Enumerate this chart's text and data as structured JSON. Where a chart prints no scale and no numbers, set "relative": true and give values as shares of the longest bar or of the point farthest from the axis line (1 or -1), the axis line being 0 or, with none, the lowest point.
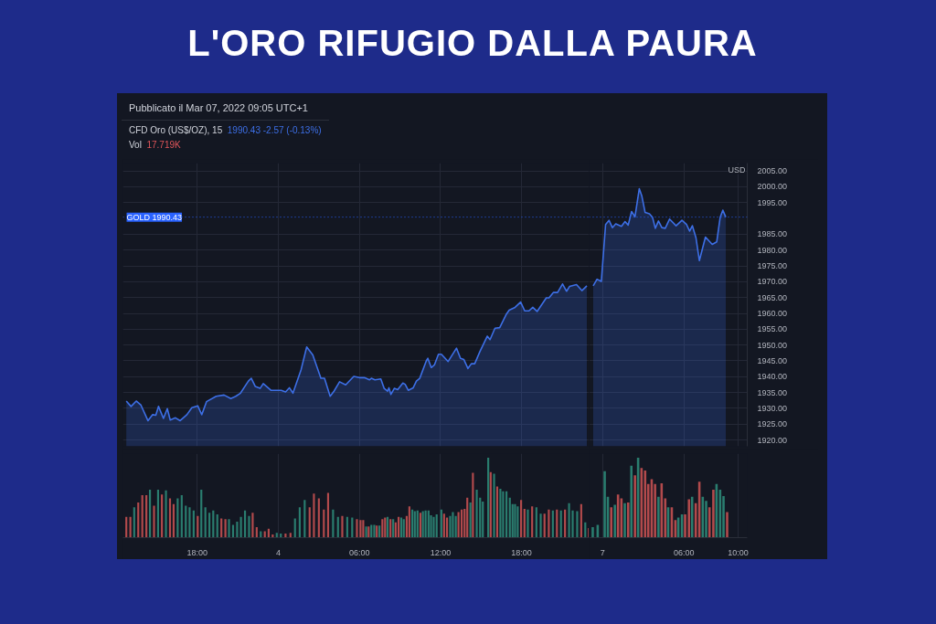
{
  "chart_data": [
    {
      "type": "area",
      "title": "L'ORO RIFUGIO DALLA PAURA",
      "annotations": [
        "Pubblicato il Mar 07, 2022 09:05 UTC+1",
        "CFD Oro (US$/OZ), 15",
        "1990.43  -2.57 (-0.13%)"
      ],
      "x": [
        "2022-03-03T12:45",
        "2022-03-03T13:06",
        "2022-03-03T13:29",
        "2022-03-03T13:50",
        "2022-03-03T14:21",
        "2022-03-03T14:42",
        "2022-03-03T14:56",
        "2022-03-03T15:08",
        "2022-03-03T15:30",
        "2022-03-03T15:47",
        "2022-03-03T16:00",
        "2022-03-03T16:23",
        "2022-03-03T16:44",
        "2022-03-03T17:14",
        "2022-03-03T17:36",
        "2022-03-03T18:02",
        "2022-03-03T18:20",
        "2022-03-03T18:41",
        "2022-03-03T19:24",
        "2022-03-03T19:59",
        "2022-03-03T20:29",
        "2022-03-03T20:51",
        "2022-03-03T21:12",
        "2022-03-03T21:47",
        "2022-03-03T22:00",
        "2022-03-03T22:18",
        "2022-03-03T22:39",
        "2022-03-03T22:53",
        "2022-03-03T23:27",
        "2022-03-04T00:13",
        "2022-03-04T00:32",
        "2022-03-04T00:49",
        "2022-03-04T01:05",
        "2022-03-04T01:41",
        "2022-03-04T02:06",
        "2022-03-04T02:33",
        "2022-03-04T03:09",
        "2022-03-04T03:25",
        "2022-03-04T03:50",
        "2022-03-04T04:07",
        "2022-03-04T04:32",
        "2022-03-04T04:59",
        "2022-03-04T05:35",
        "2022-03-04T06:00",
        "2022-03-04T06:22",
        "2022-03-04T06:45",
        "2022-03-04T06:53",
        "2022-03-04T07:09",
        "2022-03-04T07:35",
        "2022-03-04T07:50",
        "2022-03-04T08:05",
        "2022-03-04T08:11",
        "2022-03-04T08:20",
        "2022-03-04T08:35",
        "2022-03-04T08:50",
        "2022-03-04T09:13",
        "2022-03-04T09:23",
        "2022-03-04T09:37",
        "2022-03-04T09:59",
        "2022-03-04T10:13",
        "2022-03-04T10:28",
        "2022-03-04T10:37",
        "2022-03-04T10:57",
        "2022-03-04T11:04",
        "2022-03-04T11:19",
        "2022-03-04T11:33",
        "2022-03-04T11:51",
        "2022-03-04T12:04",
        "2022-03-04T12:34",
        "2022-03-04T13:11",
        "2022-03-04T13:29",
        "2022-03-04T13:44",
        "2022-03-04T14:02",
        "2022-03-04T14:17",
        "2022-03-04T14:32",
        "2022-03-04T14:55",
        "2022-03-04T15:28",
        "2022-03-04T15:40",
        "2022-03-04T16:02",
        "2022-03-04T16:23",
        "2022-03-04T16:53",
        "2022-03-04T17:05",
        "2022-03-04T17:31",
        "2022-03-04T17:56",
        "2022-03-04T18:14",
        "2022-03-04T18:33",
        "2022-03-04T18:50",
        "2022-03-04T19:09",
        "2022-03-04T19:50",
        "2022-03-04T20:02",
        "2022-03-04T20:21",
        "2022-03-04T20:40",
        "2022-03-04T21:02",
        "2022-03-04T21:20",
        "2022-03-04T21:33",
        "2022-03-04T22:04",
        "2022-03-04T22:28",
        "2022-03-04T22:50"
      ],
      "series": [
        {
          "color": "#3d6fe6",
          "values": [
            1932.3,
            1930.6,
            1932.3,
            1931.0,
            1926.1,
            1928.0,
            1927.8,
            1930.6,
            1926.8,
            1929.9,
            1926.3,
            1927.0,
            1926.1,
            1928.0,
            1930.2,
            1930.8,
            1928.0,
            1932.1,
            1933.8,
            1934.2,
            1933.1,
            1933.8,
            1934.8,
            1938.6,
            1939.5,
            1936.9,
            1936.3,
            1937.8,
            1935.7,
            1935.7,
            1935.2,
            1936.5,
            1934.8,
            1942.2,
            1949.4,
            1946.9,
            1939.5,
            1939.5,
            1933.8,
            1935.4,
            1938.4,
            1937.4,
            1940.1,
            1939.7,
            1939.7,
            1939.0,
            1939.5,
            1939.0,
            1939.3,
            1936.3,
            1935.4,
            1936.5,
            1934.4,
            1936.3,
            1935.9,
            1938.0,
            1937.6,
            1935.7,
            1936.5,
            1938.6,
            1939.5,
            1941.2,
            1945.0,
            1945.8,
            1942.9,
            1943.7,
            1947.1,
            1947.1,
            1944.8,
            1949.0,
            1945.8,
            1945.4,
            1942.6,
            1944.1,
            1944.1,
            1947.9,
            1952.8,
            1951.7,
            1955.3,
            1955.5,
            1959.8,
            1961.0,
            1961.9,
            1963.6,
            1960.8,
            1960.8,
            1961.9,
            1960.6,
            1964.9,
            1964.9,
            1966.6,
            1966.6,
            1969.3,
            1967.0,
            1968.5,
            1969.1,
            1967.2,
            1968.7
          ]
        }
      ],
      "xlim": [
        "2022-03-03T12:30",
        "2022-03-04T23:00"
      ],
      "ylim": [
        1918,
        2007.5
      ],
      "xticks": [
        {
          "value": "2022-03-03T18:00",
          "label": null
        },
        {
          "value": "2022-03-04T00:00",
          "label": null
        },
        {
          "value": "2022-03-04T06:00",
          "label": null
        },
        {
          "value": "2022-03-04T12:00",
          "label": null
        },
        {
          "value": "2022-03-04T18:00",
          "label": null
        }
      ],
      "yticks": [
        {
          "value": 1920,
          "label": null
        },
        {
          "value": 1925,
          "label": null
        },
        {
          "value": 1930,
          "label": null
        },
        {
          "value": 1935,
          "label": null
        },
        {
          "value": 1940,
          "label": null
        },
        {
          "value": 1945,
          "label": null
        },
        {
          "value": 1950,
          "label": null
        },
        {
          "value": 1955,
          "label": null
        },
        {
          "value": 1960,
          "label": null
        },
        {
          "value": 1965,
          "label": null
        },
        {
          "value": 1970,
          "label": null
        },
        {
          "value": 1975,
          "label": null
        },
        {
          "value": 1980,
          "label": null
        },
        {
          "value": 1985,
          "label": null
        },
        {
          "value": 1995,
          "label": null
        },
        {
          "value": 2000,
          "label": null
        },
        {
          "value": 2005,
          "label": null
        }
      ],
      "ref_lines": [
        {
          "axis": "y",
          "value": 1990.43,
          "label": "GOLD 1990.43",
          "color": "#2962ff",
          "line_style": "dotted"
        }
      ],
      "grid": true,
      "tick_labels": false
    },
    {
      "type": "area",
      "ylabel": "USD",
      "x": [
        "2022-03-06T23:18",
        "2022-03-06T23:35",
        "2022-03-06T23:54",
        "2022-03-07T00:13",
        "2022-03-07T00:28",
        "2022-03-07T00:43",
        "2022-03-07T00:58",
        "2022-03-07T01:23",
        "2022-03-07T01:39",
        "2022-03-07T01:53",
        "2022-03-07T02:08",
        "2022-03-07T02:23",
        "2022-03-07T02:42",
        "2022-03-07T02:53",
        "2022-03-07T03:08",
        "2022-03-07T03:27",
        "2022-03-07T03:41",
        "2022-03-07T03:53",
        "2022-03-07T04:07",
        "2022-03-07T04:22",
        "2022-03-07T04:37",
        "2022-03-07T04:56",
        "2022-03-07T05:25",
        "2022-03-07T05:51",
        "2022-03-07T06:11",
        "2022-03-07T06:25",
        "2022-03-07T06:37",
        "2022-03-07T06:53",
        "2022-03-07T07:08",
        "2022-03-07T07:35",
        "2022-03-07T08:05",
        "2022-03-07T08:25",
        "2022-03-07T08:40",
        "2022-03-07T08:52",
        "2022-03-07T09:05"
      ],
      "series": [
        {
          "color": "#3d6fe6",
          "values": [
            1968.7,
            1970.8,
            1970.1,
            1988.1,
            1989.4,
            1987.1,
            1988.3,
            1987.5,
            1989.0,
            1987.9,
            1992.2,
            1990.5,
            1999.4,
            1997.2,
            1991.9,
            1991.5,
            1990.3,
            1986.9,
            1989.2,
            1987.1,
            1986.9,
            1989.8,
            1987.7,
            1989.4,
            1988.1,
            1986.0,
            1987.7,
            1983.9,
            1976.7,
            1984.1,
            1981.8,
            1982.6,
            1990.3,
            1992.6,
            1990.43
          ]
        }
      ],
      "xlim": [
        "2022-03-06T23:00",
        "2022-03-07T10:40"
      ],
      "ylim": [
        1918,
        2007.5
      ],
      "xticks": [
        {
          "value": "2022-03-07T00:00",
          "label": null
        },
        {
          "value": "2022-03-07T06:00",
          "label": null
        },
        {
          "value": "2022-03-07T10:00",
          "label": null
        }
      ],
      "yticks": [
        {
          "value": 1920,
          "label": "1920.00"
        },
        {
          "value": 1925,
          "label": "1925.00"
        },
        {
          "value": 1930,
          "label": "1930.00"
        },
        {
          "value": 1935,
          "label": "1935.00"
        },
        {
          "value": 1940,
          "label": "1940.00"
        },
        {
          "value": 1945,
          "label": "1945.00"
        },
        {
          "value": 1950,
          "label": "1950.00"
        },
        {
          "value": 1955,
          "label": "1955.00"
        },
        {
          "value": 1960,
          "label": "1960.00"
        },
        {
          "value": 1965,
          "label": "1965.00"
        },
        {
          "value": 1970,
          "label": "1970.00"
        },
        {
          "value": 1975,
          "label": "1975.00"
        },
        {
          "value": 1980,
          "label": "1980.00"
        },
        {
          "value": 1985,
          "label": "1985.00"
        },
        {
          "value": 1995,
          "label": "1995.00"
        },
        {
          "value": 2000,
          "label": "2000.00"
        },
        {
          "value": 2005,
          "label": "2005.00"
        }
      ],
      "ref_lines": [
        {
          "axis": "y",
          "value": 1990.43,
          "color": "#2962ff",
          "line_style": "dotted"
        }
      ],
      "grid": true,
      "tick_labels": "y"
    },
    {
      "type": "bar",
      "relative": true,
      "annotations": [
        "Vol",
        "17.719K"
      ],
      "x": [
        "2022-03-03T12:45",
        "2022-03-03T13:03",
        "2022-03-03T13:20",
        "2022-03-03T13:38",
        "2022-03-03T13:56",
        "2022-03-03T14:14",
        "2022-03-03T14:30",
        "2022-03-03T14:48",
        "2022-03-03T15:06",
        "2022-03-03T15:23",
        "2022-03-03T15:41",
        "2022-03-03T15:59",
        "2022-03-03T16:15",
        "2022-03-03T16:33",
        "2022-03-03T16:51",
        "2022-03-03T17:09",
        "2022-03-03T17:26",
        "2022-03-03T17:44",
        "2022-03-03T18:02",
        "2022-03-03T18:18",
        "2022-03-03T18:36",
        "2022-03-03T18:54",
        "2022-03-03T19:11",
        "2022-03-03T19:29",
        "2022-03-03T19:47",
        "2022-03-03T20:05",
        "2022-03-03T20:21",
        "2022-03-03T20:39",
        "2022-03-03T20:57",
        "2022-03-03T21:14",
        "2022-03-03T21:32",
        "2022-03-03T21:50",
        "2022-03-03T22:06",
        "2022-03-03T22:24",
        "2022-03-03T22:42",
        "2022-03-03T23:00",
        "2022-03-03T23:17",
        "2022-03-03T23:35",
        "2022-03-03T23:53",
        "2022-03-04T00:11",
        "2022-03-04T00:32",
        "2022-03-04T00:54",
        "2022-03-04T01:14",
        "2022-03-04T01:35",
        "2022-03-04T01:57",
        "2022-03-04T02:19",
        "2022-03-04T02:38",
        "2022-03-04T03:00",
        "2022-03-04T03:22",
        "2022-03-04T03:41",
        "2022-03-04T04:03",
        "2022-03-04T04:25",
        "2022-03-04T04:44",
        "2022-03-04T05:06",
        "2022-03-04T05:28",
        "2022-03-04T05:49",
        "2022-03-04T06:05",
        "2022-03-04T06:17",
        "2022-03-04T06:30",
        "2022-03-04T06:41",
        "2022-03-04T06:53",
        "2022-03-04T07:06",
        "2022-03-04T07:17",
        "2022-03-04T07:29",
        "2022-03-04T07:42",
        "2022-03-04T07:54",
        "2022-03-04T08:05",
        "2022-03-04T08:18",
        "2022-03-04T08:30",
        "2022-03-04T08:41",
        "2022-03-04T08:54",
        "2022-03-04T09:06",
        "2022-03-04T09:17",
        "2022-03-04T09:30",
        "2022-03-04T09:42",
        "2022-03-04T09:55",
        "2022-03-04T10:06",
        "2022-03-04T10:18",
        "2022-03-04T10:31",
        "2022-03-04T10:42",
        "2022-03-04T10:54",
        "2022-03-04T11:07",
        "2022-03-04T11:18",
        "2022-03-04T11:30",
        "2022-03-04T11:43",
        "2022-03-04T12:04",
        "2022-03-04T12:16",
        "2022-03-04T12:29",
        "2022-03-04T12:43",
        "2022-03-04T12:55",
        "2022-03-04T13:08",
        "2022-03-04T13:20",
        "2022-03-04T13:34",
        "2022-03-04T13:47",
        "2022-03-04T13:59",
        "2022-03-04T14:13",
        "2022-03-04T14:24",
        "2022-03-04T14:41",
        "2022-03-04T14:56",
        "2022-03-04T15:08",
        "2022-03-04T15:32",
        "2022-03-04T15:43",
        "2022-03-04T15:58",
        "2022-03-04T16:12",
        "2022-03-04T16:26",
        "2022-03-04T16:38",
        "2022-03-04T16:53",
        "2022-03-04T17:08",
        "2022-03-04T17:20",
        "2022-03-04T17:31",
        "2022-03-04T17:43",
        "2022-03-04T17:58",
        "2022-03-04T18:13",
        "2022-03-04T18:28",
        "2022-03-04T18:47",
        "2022-03-04T19:06",
        "2022-03-04T19:25",
        "2022-03-04T19:42",
        "2022-03-04T20:01",
        "2022-03-04T20:19",
        "2022-03-04T20:37",
        "2022-03-04T20:55",
        "2022-03-04T21:13",
        "2022-03-04T21:31",
        "2022-03-04T21:47",
        "2022-03-04T22:07",
        "2022-03-04T22:25",
        "2022-03-04T22:43",
        "2022-03-04T22:59"
      ],
      "values": [
        0.26,
        0.26,
        0.38,
        0.44,
        0.53,
        0.53,
        0.6,
        0.4,
        0.6,
        0.54,
        0.59,
        0.49,
        0.42,
        0.49,
        0.53,
        0.4,
        0.38,
        0.34,
        0.27,
        0.6,
        0.38,
        0.31,
        0.34,
        0.29,
        0.24,
        0.23,
        0.23,
        0.16,
        0.2,
        0.26,
        0.34,
        0.27,
        0.31,
        0.13,
        0.08,
        0.08,
        0.11,
        0.04,
        0.06,
        0.05,
        0.05,
        0.06,
        0.24,
        0.38,
        0.47,
        0.38,
        0.55,
        0.49,
        0.35,
        0.56,
        0.35,
        0.26,
        0.27,
        0.26,
        0.25,
        0.23,
        0.22,
        0.22,
        0.14,
        0.14,
        0.16,
        0.16,
        0.15,
        0.15,
        0.23,
        0.25,
        0.26,
        0.23,
        0.23,
        0.19,
        0.26,
        0.25,
        0.23,
        0.27,
        0.39,
        0.35,
        0.33,
        0.34,
        0.31,
        0.33,
        0.34,
        0.34,
        0.28,
        0.26,
        0.29,
        0.35,
        0.3,
        0.25,
        0.27,
        0.32,
        0.27,
        0.32,
        0.35,
        0.36,
        0.5,
        0.44,
        0.81,
        0.6,
        0.5,
        0.45,
        1.0,
        0.82,
        0.8,
        0.64,
        0.61,
        0.58,
        0.58,
        0.5,
        0.42,
        0.42,
        0.39,
        0.47,
        0.36,
        0.35,
        0.39,
        0.38,
        0.3,
        0.3,
        0.35,
        0.34,
        0.35,
        0.34,
        0.35,
        0.43,
        0.34,
        0.33,
        0.42,
        0.19,
        0.12
      ],
      "colors": [
        "#b24a4c",
        "#b24a4c",
        "#2a7d6f",
        "#b24a4c",
        "#b24a4c",
        "#b24a4c",
        "#2a7d6f",
        "#b24a4c",
        "#2a7d6f",
        "#b24a4c",
        "#2a7d6f",
        "#b24a4c",
        "#b24a4c",
        "#2a7d6f",
        "#2a7d6f",
        "#2a7d6f",
        "#2a7d6f",
        "#2a7d6f",
        "#b24a4c",
        "#2a7d6f",
        "#2a7d6f",
        "#2a7d6f",
        "#2a7d6f",
        "#2a7d6f",
        "#b24a4c",
        "#b24a4c",
        "#2a7d6f",
        "#2a7d6f",
        "#2a7d6f",
        "#2a7d6f",
        "#2a7d6f",
        "#2a7d6f",
        "#b24a4c",
        "#b24a4c",
        "#2a7d6f",
        "#b24a4c",
        "#b24a4c",
        "#b24a4c",
        "#2a7d6f",
        "#2a7d6f",
        "#b24a4c",
        "#b24a4c",
        "#2a7d6f",
        "#2a7d6f",
        "#2a7d6f",
        "#b24a4c",
        "#b24a4c",
        "#b24a4c",
        "#b24a4c",
        "#b24a4c",
        "#2a7d6f",
        "#2a7d6f",
        "#b24a4c",
        "#2a7d6f",
        "#2a7d6f",
        "#b24a4c",
        "#b24a4c",
        "#b24a4c",
        "#2a7d6f",
        "#b24a4c",
        "#2a7d6f",
        "#2a7d6f",
        "#b24a4c",
        "#2a7d6f",
        "#b24a4c",
        "#b24a4c",
        "#2a7d6f",
        "#b24a4c",
        "#2a7d6f",
        "#b24a4c",
        "#b24a4c",
        "#2a7d6f",
        "#2a7d6f",
        "#b24a4c",
        "#b24a4c",
        "#2a7d6f",
        "#2a7d6f",
        "#2a7d6f",
        "#b24a4c",
        "#2a7d6f",
        "#2a7d6f",
        "#2a7d6f",
        "#2a7d6f",
        "#2a7d6f",
        "#2a7d6f",
        "#2a7d6f",
        "#b24a4c",
        "#b24a4c",
        "#2a7d6f",
        "#2a7d6f",
        "#2a7d6f",
        "#b24a4c",
        "#b24a4c",
        "#b24a4c",
        "#b24a4c",
        "#2a7d6f",
        "#b24a4c",
        "#2a7d6f",
        "#2a7d6f",
        "#2a7d6f",
        "#2a7d6f",
        "#b24a4c",
        "#2a7d6f",
        "#b24a4c",
        "#2a7d6f",
        "#2a7d6f",
        "#2a7d6f",
        "#2a7d6f",
        "#2a7d6f",
        "#2a7d6f",
        "#2a7d6f",
        "#b24a4c",
        "#b24a4c",
        "#2a7d6f",
        "#b24a4c",
        "#2a7d6f",
        "#2a7d6f",
        "#b24a4c",
        "#b24a4c",
        "#2a7d6f",
        "#b24a4c",
        "#2a7d6f",
        "#b24a4c",
        "#2a7d6f",
        "#2a7d6f",
        "#2a7d6f",
        "#b24a4c",
        "#2a7d6f",
        "#b24a4c"
      ],
      "xlim": [
        "2022-03-03T12:30",
        "2022-03-04T23:00"
      ],
      "xticks": [
        {
          "value": "2022-03-03T18:00",
          "label": "18:00"
        },
        {
          "value": "2022-03-04T00:00",
          "label": "4"
        },
        {
          "value": "2022-03-04T06:00",
          "label": "06:00"
        },
        {
          "value": "2022-03-04T12:00",
          "label": "12:00"
        },
        {
          "value": "2022-03-04T18:00",
          "label": "18:00"
        }
      ],
      "grid": "x",
      "tick_labels": "x"
    },
    {
      "type": "bar",
      "relative": true,
      "x": [
        "2022-03-06T23:16",
        "2022-03-06T23:38",
        "2022-03-07T00:09",
        "2022-03-07T00:23",
        "2022-03-07T00:38",
        "2022-03-07T00:54",
        "2022-03-07T01:08",
        "2022-03-07T01:23",
        "2022-03-07T01:38",
        "2022-03-07T01:53",
        "2022-03-07T02:07",
        "2022-03-07T02:23",
        "2022-03-07T02:37",
        "2022-03-07T02:52",
        "2022-03-07T03:08",
        "2022-03-07T03:22",
        "2022-03-07T03:37",
        "2022-03-07T03:52",
        "2022-03-07T04:07",
        "2022-03-07T04:21",
        "2022-03-07T04:37",
        "2022-03-07T04:50",
        "2022-03-07T05:06",
        "2022-03-07T05:22",
        "2022-03-07T05:35",
        "2022-03-07T05:51",
        "2022-03-07T06:05",
        "2022-03-07T06:22",
        "2022-03-07T06:36",
        "2022-03-07T06:52",
        "2022-03-07T07:08",
        "2022-03-07T07:23",
        "2022-03-07T07:38",
        "2022-03-07T07:53",
        "2022-03-07T08:10",
        "2022-03-07T08:24",
        "2022-03-07T08:40",
        "2022-03-07T08:55",
        "2022-03-07T09:11"
      ],
      "values": [
        0.13,
        0.16,
        0.83,
        0.51,
        0.38,
        0.41,
        0.54,
        0.49,
        0.43,
        0.44,
        0.9,
        0.78,
        1.0,
        0.87,
        0.84,
        0.67,
        0.73,
        0.67,
        0.51,
        0.68,
        0.49,
        0.38,
        0.38,
        0.22,
        0.25,
        0.29,
        0.29,
        0.48,
        0.51,
        0.43,
        0.7,
        0.51,
        0.46,
        0.38,
        0.6,
        0.67,
        0.6,
        0.52,
        0.32
      ],
      "colors": [
        "#2a7d6f",
        "#2a7d6f",
        "#2a7d6f",
        "#2a7d6f",
        "#b24a4c",
        "#2a7d6f",
        "#b24a4c",
        "#b24a4c",
        "#2a7d6f",
        "#b24a4c",
        "#2a7d6f",
        "#b24a4c",
        "#2a7d6f",
        "#b24a4c",
        "#b24a4c",
        "#b24a4c",
        "#b24a4c",
        "#b24a4c",
        "#2a7d6f",
        "#b24a4c",
        "#b24a4c",
        "#2a7d6f",
        "#b24a4c",
        "#b24a4c",
        "#2a7d6f",
        "#2a7d6f",
        "#b24a4c",
        "#b24a4c",
        "#2a7d6f",
        "#b24a4c",
        "#b24a4c",
        "#2a7d6f",
        "#2a7d6f",
        "#b24a4c",
        "#b24a4c",
        "#2a7d6f",
        "#2a7d6f",
        "#2a7d6f",
        "#b24a4c"
      ],
      "xlim": [
        "2022-03-06T23:00",
        "2022-03-07T10:40"
      ],
      "xticks": [
        {
          "value": "2022-03-07T00:00",
          "label": "7"
        },
        {
          "value": "2022-03-07T06:00",
          "label": "06:00"
        },
        {
          "value": "2022-03-07T10:00",
          "label": "10:00"
        }
      ],
      "grid": "x",
      "tick_labels": "x"
    }
  ]
}
